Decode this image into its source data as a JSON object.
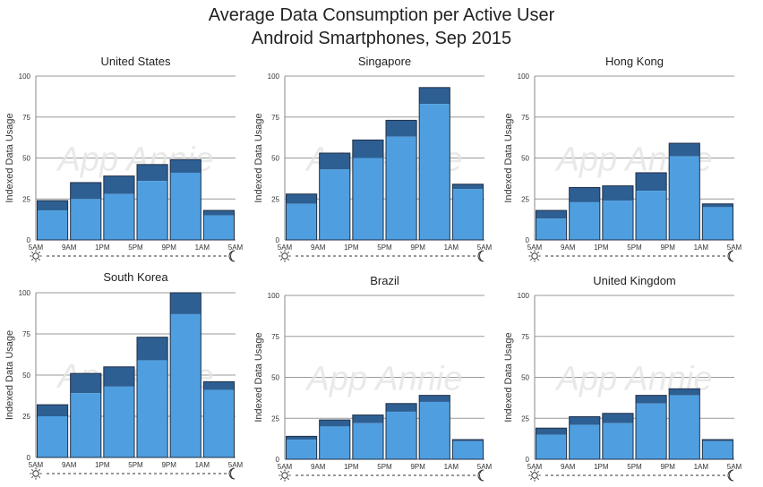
{
  "header": {
    "title_line1": "Average Data Consumption per Active User",
    "title_line2": "Android Smartphones, Sep 2015"
  },
  "colors": {
    "light": "#4f9fe0",
    "dark": "#2e5f93",
    "watermark": "#e4e4e4"
  },
  "watermark": "App Annie",
  "icons": {
    "start": "sun-icon",
    "end": "moon-icon"
  },
  "chart_data": [
    {
      "type": "bar",
      "title": "United States",
      "ylabel": "Indexed Data Usage",
      "ylim": [
        0,
        100
      ],
      "yticks": [
        0,
        25,
        50,
        75,
        100
      ],
      "xticks": [
        "5AM",
        "9AM",
        "1PM",
        "5PM",
        "9PM",
        "1AM",
        "5AM"
      ],
      "categories": [
        "5AM-9AM",
        "9AM-1PM",
        "1PM-5PM",
        "5PM-9PM",
        "9PM-1AM",
        "1AM-5AM"
      ],
      "series": [
        {
          "name": "lower",
          "values": [
            18,
            25,
            28,
            36,
            41,
            15
          ]
        },
        {
          "name": "total",
          "values": [
            24,
            35,
            39,
            46,
            49,
            18
          ]
        }
      ]
    },
    {
      "type": "bar",
      "title": "Singapore",
      "ylabel": "Indexed Data Usage",
      "ylim": [
        0,
        100
      ],
      "yticks": [
        0,
        25,
        50,
        75,
        100
      ],
      "xticks": [
        "5AM",
        "9AM",
        "1PM",
        "5PM",
        "9PM",
        "1AM",
        "5AM"
      ],
      "categories": [
        "5AM-9AM",
        "9AM-1PM",
        "1PM-5PM",
        "5PM-9PM",
        "9PM-1AM",
        "1AM-5AM"
      ],
      "series": [
        {
          "name": "lower",
          "values": [
            22,
            43,
            50,
            63,
            83,
            31
          ]
        },
        {
          "name": "total",
          "values": [
            28,
            53,
            61,
            73,
            93,
            34
          ]
        }
      ]
    },
    {
      "type": "bar",
      "title": "Hong Kong",
      "ylabel": "Indexed Data Usage",
      "ylim": [
        0,
        100
      ],
      "yticks": [
        0,
        25,
        50,
        75,
        100
      ],
      "xticks": [
        "5AM",
        "9AM",
        "1PM",
        "5PM",
        "9PM",
        "1AM",
        "5AM"
      ],
      "categories": [
        "5AM-9AM",
        "9AM-1PM",
        "1PM-5PM",
        "5PM-9PM",
        "9PM-1AM",
        "1AM-5AM"
      ],
      "series": [
        {
          "name": "lower",
          "values": [
            13,
            23,
            24,
            30,
            51,
            20
          ]
        },
        {
          "name": "total",
          "values": [
            18,
            32,
            33,
            41,
            59,
            22
          ]
        }
      ]
    },
    {
      "type": "bar",
      "title": "South Korea",
      "ylabel": "Indexed Data Usage",
      "ylim": [
        0,
        100
      ],
      "yticks": [
        0,
        25,
        50,
        75,
        100
      ],
      "xticks": [
        "5AM",
        "9AM",
        "1PM",
        "5PM",
        "9PM",
        "1AM",
        "5AM"
      ],
      "categories": [
        "5AM-9AM",
        "9AM-1PM",
        "1PM-5PM",
        "5PM-9PM",
        "9PM-1AM",
        "1AM-5AM"
      ],
      "series": [
        {
          "name": "lower",
          "values": [
            25,
            39,
            43,
            59,
            87,
            41
          ]
        },
        {
          "name": "total",
          "values": [
            32,
            51,
            55,
            73,
            100,
            46
          ]
        }
      ]
    },
    {
      "type": "bar",
      "title": "Brazil",
      "ylabel": "Indexed Data Usage",
      "ylim": [
        0,
        100
      ],
      "yticks": [
        0,
        25,
        50,
        75,
        100
      ],
      "xticks": [
        "5AM",
        "9AM",
        "1PM",
        "5PM",
        "9PM",
        "1AM",
        "5AM"
      ],
      "categories": [
        "5AM-9AM",
        "9AM-1PM",
        "1PM-5PM",
        "5PM-9PM",
        "9PM-1AM",
        "1AM-5AM"
      ],
      "series": [
        {
          "name": "lower",
          "values": [
            12,
            20,
            22,
            29,
            35,
            11
          ]
        },
        {
          "name": "total",
          "values": [
            14,
            24,
            27,
            34,
            39,
            12
          ]
        }
      ]
    },
    {
      "type": "bar",
      "title": "United Kingdom",
      "ylabel": "Indexed Data Usage",
      "ylim": [
        0,
        100
      ],
      "yticks": [
        0,
        25,
        50,
        75,
        100
      ],
      "xticks": [
        "5AM",
        "9AM",
        "1PM",
        "5PM",
        "9PM",
        "1AM",
        "5AM"
      ],
      "categories": [
        "5AM-9AM",
        "9AM-1PM",
        "1PM-5PM",
        "5PM-9PM",
        "9PM-1AM",
        "1AM-5AM"
      ],
      "series": [
        {
          "name": "lower",
          "values": [
            15,
            21,
            22,
            34,
            39,
            11
          ]
        },
        {
          "name": "total",
          "values": [
            19,
            26,
            28,
            39,
            43,
            12
          ]
        }
      ]
    }
  ]
}
